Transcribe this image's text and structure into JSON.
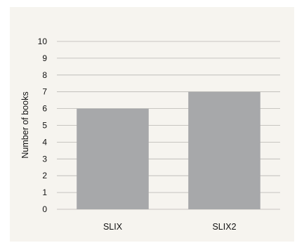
{
  "chart_data": {
    "type": "bar",
    "categories": [
      "SLIX",
      "SLIX2"
    ],
    "values": [
      6,
      7
    ],
    "title": "",
    "xlabel": "",
    "ylabel": "Number of books",
    "ylim": [
      0,
      10
    ],
    "yticks": [
      "0",
      "1",
      "2",
      "3",
      "4",
      "5",
      "6",
      "7",
      "8",
      "9",
      "10"
    ],
    "grid": true,
    "legend": "none",
    "colors": {
      "bar": "#a7a8aa",
      "grid": "#b8b6b2",
      "background": "#f6f4ef"
    }
  }
}
